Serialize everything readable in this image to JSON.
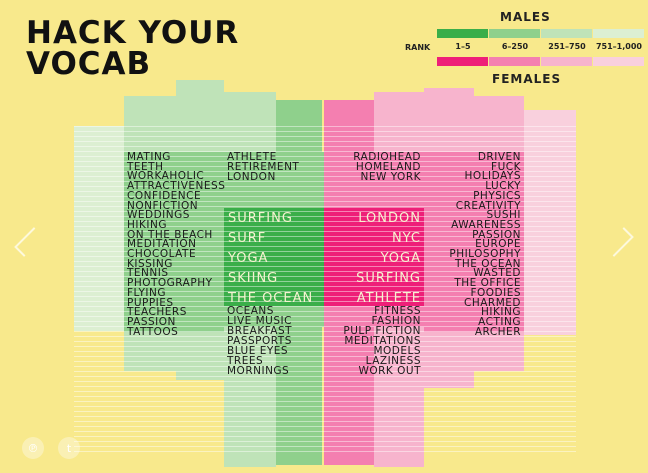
{
  "page": {
    "title_line1": "HACK YOUR",
    "title_line2": "VOCAB",
    "legend": {
      "males_label": "MALES",
      "females_label": "FEMALES",
      "rank_label": "RANK",
      "ranks": [
        "1–5",
        "6–250",
        "251–750",
        "751–1,000"
      ],
      "male_colors": [
        "#3aae49",
        "#8fd08c",
        "#bfe3b8",
        "#dcefd2"
      ],
      "female_colors": [
        "#ee1f78",
        "#f47fb0",
        "#f7b4cd",
        "#f9d0dd"
      ]
    },
    "icons": {
      "left_nav": "chevron-left-icon",
      "right_nav": "chevron-right-icon",
      "share1": "pinterest-icon",
      "share2": "tumblr-icon"
    },
    "share_glyphs": [
      "℗",
      "t"
    ]
  },
  "chart_data": {
    "type": "table",
    "title": "HACK YOUR VOCAB",
    "columns": [
      "Males 751–1,000",
      "Males 251–750",
      "Males 6–250",
      "Males 1–5",
      "Females 1–5",
      "Females 6–250",
      "Females 251–750",
      "Females 751–1,000"
    ],
    "males_top": [
      "SURFING",
      "SURF",
      "YOGA",
      "SKIING",
      "THE OCEAN"
    ],
    "females_top": [
      "LONDON",
      "NYC",
      "YOGA",
      "SURFING",
      "ATHLETE"
    ],
    "males_6_250_col1": [
      "MATING",
      "TEETH",
      "WORKAHOLIC",
      "ATTRACTIVENESS",
      "CONFIDENCE",
      "NONFICTION",
      "WEDDINGS",
      "HIKING",
      "ON THE BEACH",
      "MEDITATION",
      "CHOCOLATE",
      "KISSING",
      "TENNIS",
      "PHOTOGRAPHY",
      "FLYING",
      "PUPPIES",
      "TEACHERS",
      "PASSION",
      "TATTOOS"
    ],
    "males_6_250_col2_top": [
      "ATHLETE",
      "RETIREMENT",
      "LONDON"
    ],
    "males_6_250_col2_bottom": [
      "OCEANS",
      "LIVE MUSIC",
      "BREAKFAST",
      "PASSPORTS",
      "BLUE EYES",
      "TREES",
      "MORNINGS"
    ],
    "females_6_250_col1_top": [
      "RADIOHEAD",
      "HOMELAND",
      "NEW YORK"
    ],
    "females_6_250_col1_bottom": [
      "FITNESS",
      "FASHION",
      "PULP FICTION",
      "MEDITATIONS",
      "MODELS",
      "LAZINESS",
      "WORK OUT"
    ],
    "females_6_250_col2": [
      "DRIVEN",
      "FUCK",
      "HOLIDAYS",
      "LUCKY",
      "PHYSICS",
      "CREATIVITY",
      "SUSHI",
      "AWARENESS",
      "PASSION",
      "EUROPE",
      "PHILOSOPHY",
      "THE OCEAN",
      "WASTED",
      "THE OFFICE",
      "FOODIES",
      "CHARMED",
      "HIKING",
      "ACTING",
      "ARCHER"
    ]
  }
}
